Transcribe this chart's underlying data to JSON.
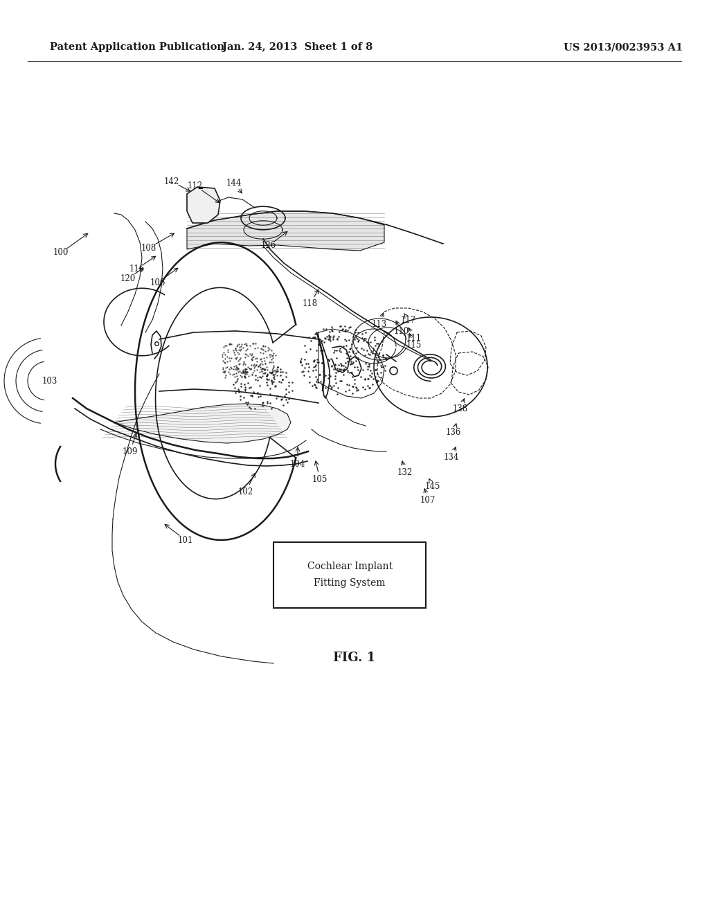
{
  "header_left": "Patent Application Publication",
  "header_center": "Jan. 24, 2013  Sheet 1 of 8",
  "header_right": "US 2013/0023953 A1",
  "fig_label": "FIG. 1",
  "box_text_line1": "Cochlear Implant",
  "box_text_line2": "Fitting System",
  "background_color": "#ffffff",
  "line_color": "#1a1a1a",
  "text_color": "#1a1a1a",
  "header_fontsize": 10.5,
  "label_fontsize": 8.5,
  "fig_label_fontsize": 13
}
